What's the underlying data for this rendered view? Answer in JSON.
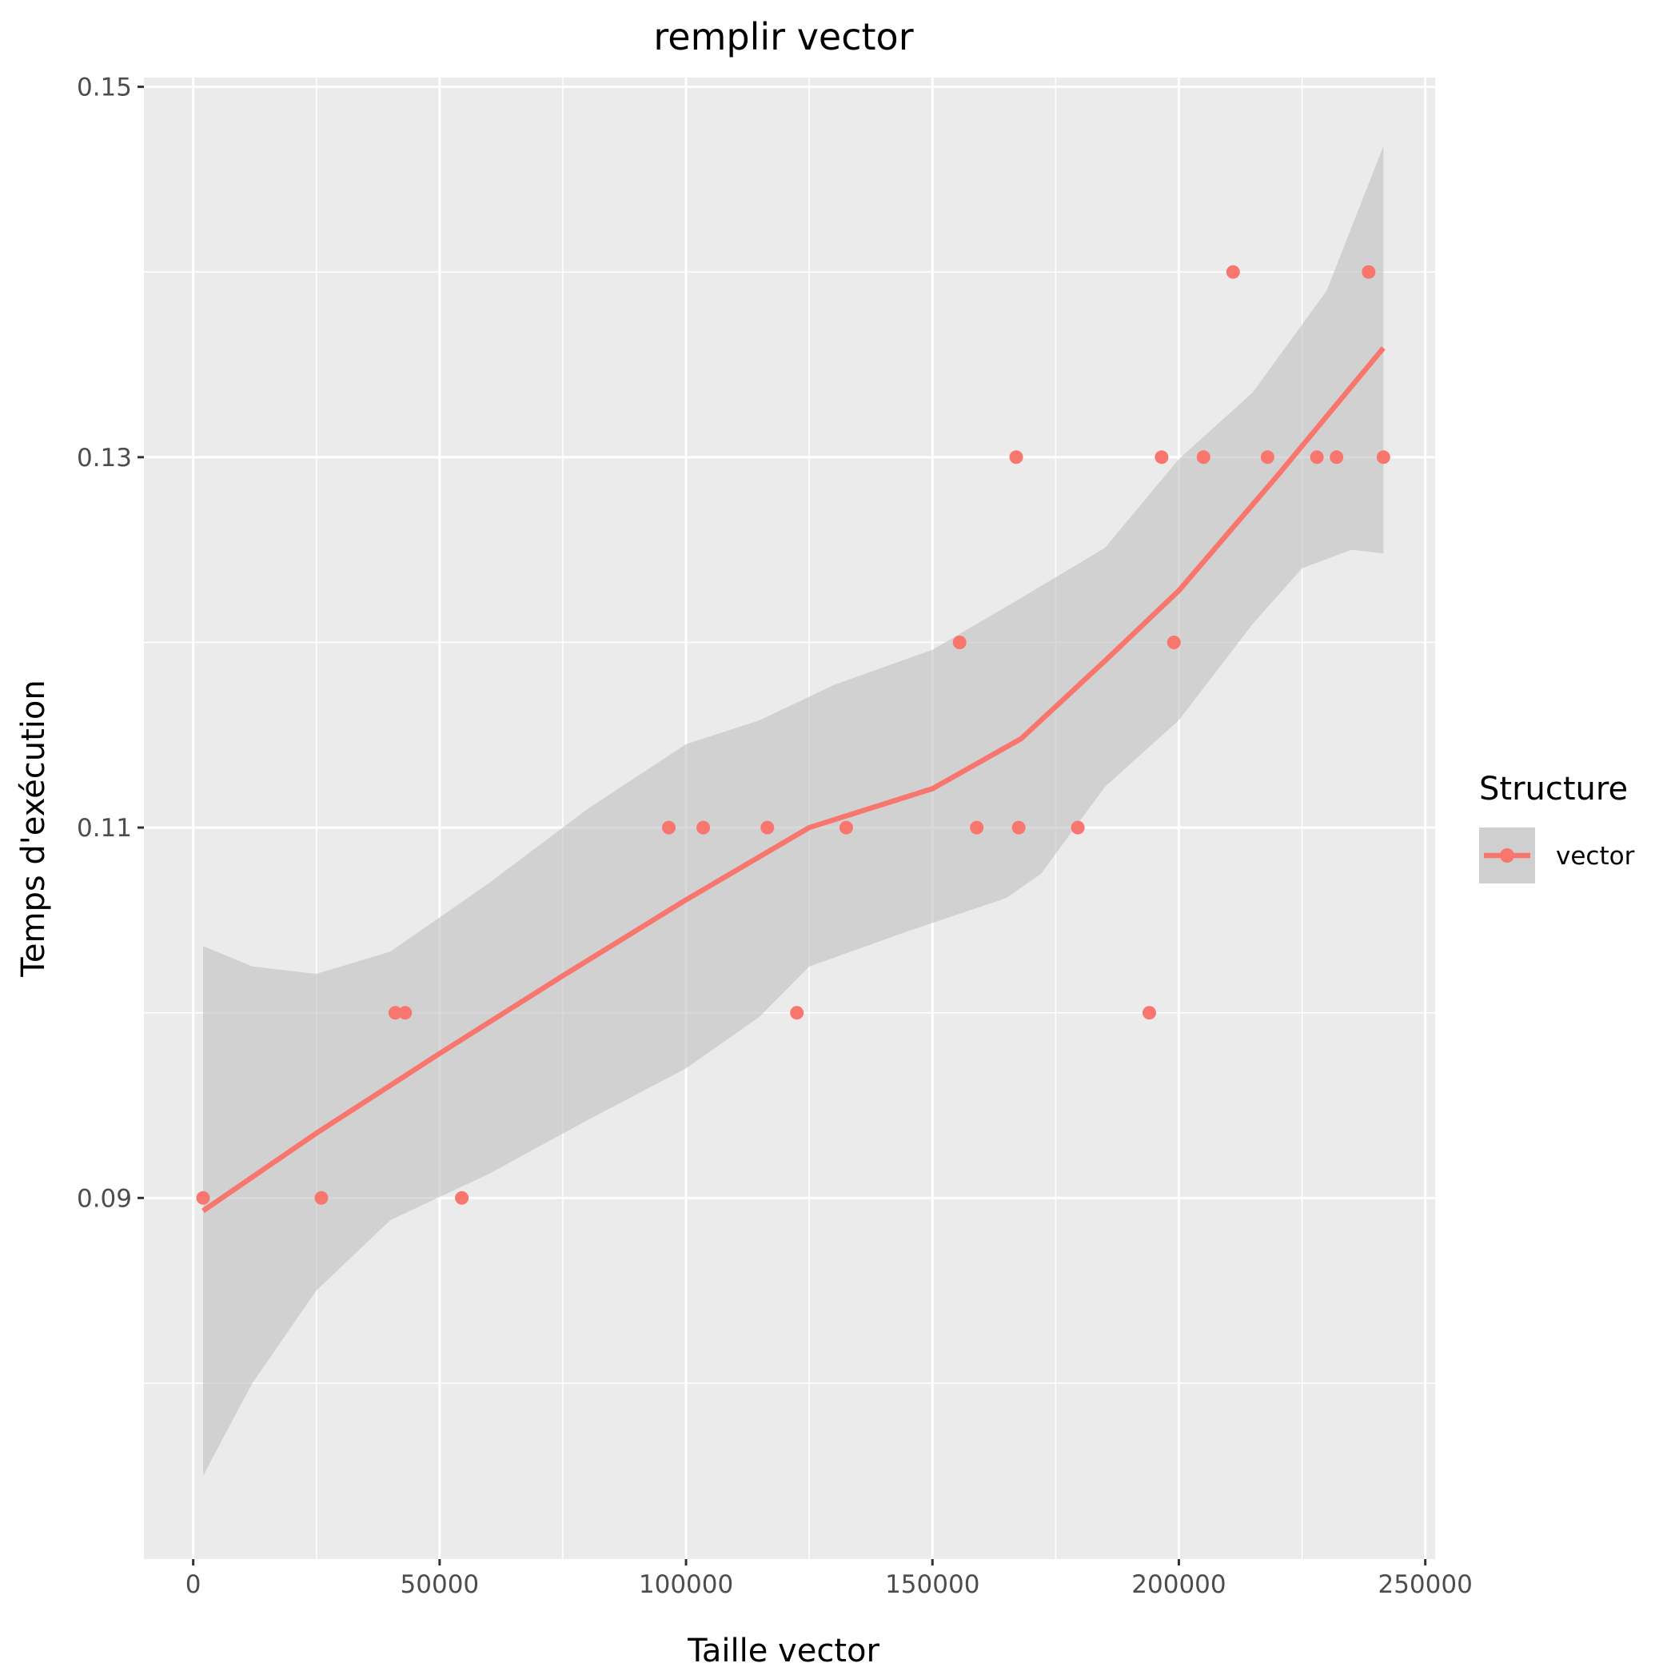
{
  "chart_data": {
    "type": "scatter",
    "title": "remplir vector",
    "xlabel": "Taille vector",
    "ylabel": "Temps d'exécution",
    "xlim": [
      -10000,
      252000
    ],
    "ylim": [
      0.0705,
      0.1505
    ],
    "x_ticks": [
      0,
      50000,
      100000,
      150000,
      200000,
      250000
    ],
    "x_tick_labels": [
      "0",
      "50000",
      "100000",
      "150000",
      "200000",
      "250000"
    ],
    "y_ticks": [
      0.09,
      0.11,
      0.13,
      0.15
    ],
    "y_tick_labels": [
      "0.09",
      "0.11",
      "0.13",
      "0.15"
    ],
    "grid": true,
    "legend": {
      "title": "Structure",
      "placement": "right",
      "entries": [
        "vector"
      ]
    },
    "series": [
      {
        "name": "vector",
        "color": "#f8766d",
        "points": [
          {
            "x": 2000,
            "y": 0.09
          },
          {
            "x": 26000,
            "y": 0.09
          },
          {
            "x": 54500,
            "y": 0.09
          },
          {
            "x": 41000,
            "y": 0.1
          },
          {
            "x": 43000,
            "y": 0.1
          },
          {
            "x": 96500,
            "y": 0.11
          },
          {
            "x": 103500,
            "y": 0.11
          },
          {
            "x": 116500,
            "y": 0.11
          },
          {
            "x": 132500,
            "y": 0.11
          },
          {
            "x": 122500,
            "y": 0.1
          },
          {
            "x": 155500,
            "y": 0.12
          },
          {
            "x": 159000,
            "y": 0.11
          },
          {
            "x": 167500,
            "y": 0.11
          },
          {
            "x": 179500,
            "y": 0.11
          },
          {
            "x": 167000,
            "y": 0.13
          },
          {
            "x": 194000,
            "y": 0.1
          },
          {
            "x": 196500,
            "y": 0.13
          },
          {
            "x": 199000,
            "y": 0.12
          },
          {
            "x": 205000,
            "y": 0.13
          },
          {
            "x": 211000,
            "y": 0.14
          },
          {
            "x": 218000,
            "y": 0.13
          },
          {
            "x": 228000,
            "y": 0.13
          },
          {
            "x": 232000,
            "y": 0.13
          },
          {
            "x": 238500,
            "y": 0.14
          },
          {
            "x": 241500,
            "y": 0.13
          }
        ]
      }
    ],
    "smooth": {
      "method": "loess",
      "color": "#f8766d",
      "band_color": "#bfbfbf",
      "fit": [
        {
          "x": 2000,
          "y": 0.0893
        },
        {
          "x": 25000,
          "y": 0.0935
        },
        {
          "x": 50000,
          "y": 0.0978
        },
        {
          "x": 75000,
          "y": 0.102
        },
        {
          "x": 100000,
          "y": 0.1061
        },
        {
          "x": 125000,
          "y": 0.11
        },
        {
          "x": 150000,
          "y": 0.1121
        },
        {
          "x": 168000,
          "y": 0.1148
        },
        {
          "x": 185000,
          "y": 0.119
        },
        {
          "x": 200000,
          "y": 0.1228
        },
        {
          "x": 220000,
          "y": 0.129
        },
        {
          "x": 241500,
          "y": 0.1359
        }
      ],
      "upper": [
        {
          "x": 2000,
          "y": 0.1036
        },
        {
          "x": 12000,
          "y": 0.1025
        },
        {
          "x": 25000,
          "y": 0.1021
        },
        {
          "x": 40000,
          "y": 0.1033
        },
        {
          "x": 60000,
          "y": 0.107
        },
        {
          "x": 80000,
          "y": 0.111
        },
        {
          "x": 100000,
          "y": 0.1145
        },
        {
          "x": 115000,
          "y": 0.1158
        },
        {
          "x": 130000,
          "y": 0.1177
        },
        {
          "x": 150000,
          "y": 0.1196
        },
        {
          "x": 168000,
          "y": 0.1224
        },
        {
          "x": 185000,
          "y": 0.1251
        },
        {
          "x": 200000,
          "y": 0.1299
        },
        {
          "x": 215000,
          "y": 0.1335
        },
        {
          "x": 230000,
          "y": 0.139
        },
        {
          "x": 241500,
          "y": 0.1468
        }
      ],
      "lower": [
        {
          "x": 2000,
          "y": 0.075
        },
        {
          "x": 12000,
          "y": 0.08
        },
        {
          "x": 25000,
          "y": 0.085
        },
        {
          "x": 40000,
          "y": 0.0888
        },
        {
          "x": 60000,
          "y": 0.0913
        },
        {
          "x": 80000,
          "y": 0.0942
        },
        {
          "x": 100000,
          "y": 0.097
        },
        {
          "x": 115000,
          "y": 0.0998
        },
        {
          "x": 125000,
          "y": 0.1025
        },
        {
          "x": 145000,
          "y": 0.1044
        },
        {
          "x": 165000,
          "y": 0.1062
        },
        {
          "x": 172000,
          "y": 0.1075
        },
        {
          "x": 185000,
          "y": 0.1122
        },
        {
          "x": 200000,
          "y": 0.1158
        },
        {
          "x": 215000,
          "y": 0.121
        },
        {
          "x": 225000,
          "y": 0.124
        },
        {
          "x": 235000,
          "y": 0.125
        },
        {
          "x": 241500,
          "y": 0.1248
        }
      ]
    }
  }
}
